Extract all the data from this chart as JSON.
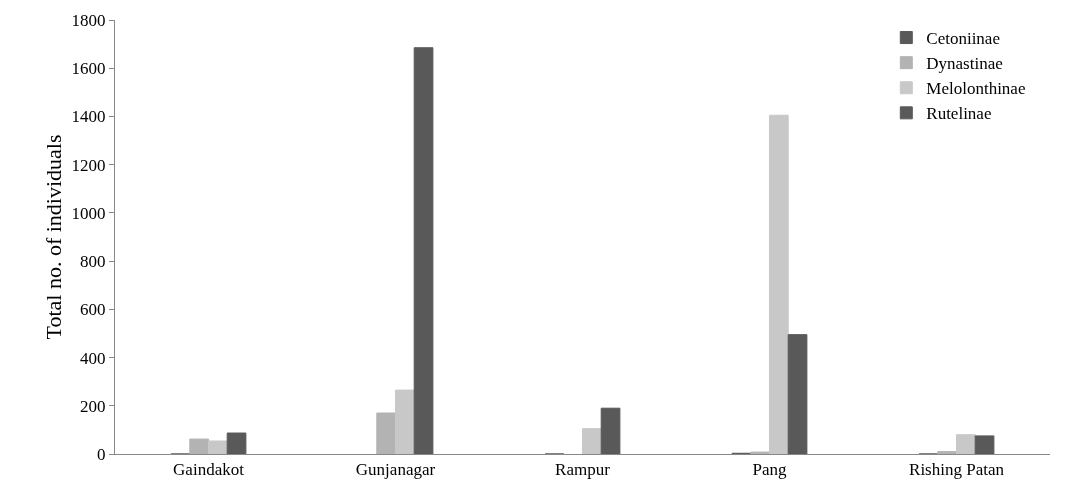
{
  "chart_data": {
    "type": "bar",
    "ylabel": "Total no. of individuals",
    "categories": [
      "Gaindakot",
      "Gunjanagar",
      "Rampur",
      "Pang",
      "Rishing Patan"
    ],
    "series": [
      {
        "name": "Cetoniinae",
        "color": "#595959",
        "values": [
          0,
          null,
          0,
          3,
          0
        ]
      },
      {
        "name": "Dynastinae",
        "color": "#b3b3b3",
        "values": [
          62,
          170,
          null,
          8,
          10
        ]
      },
      {
        "name": "Melolonthinae",
        "color": "#c8c8c8",
        "values": [
          54,
          265,
          105,
          1405,
          80
        ]
      },
      {
        "name": "Rutelinae",
        "color": "#595959",
        "values": [
          87,
          1685,
          190,
          495,
          75
        ]
      }
    ],
    "ylim": [
      0,
      1800
    ],
    "yticks": [
      0,
      200,
      400,
      600,
      800,
      1000,
      1200,
      1400,
      1600,
      1800
    ],
    "grid": false,
    "legend": "top right"
  }
}
